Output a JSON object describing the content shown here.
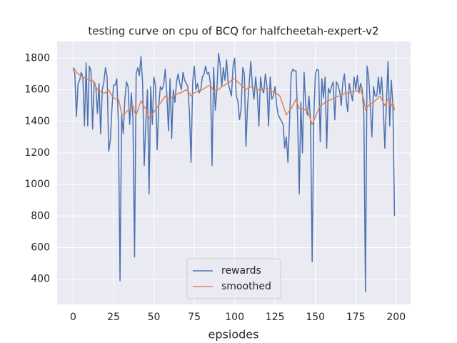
{
  "chart_data": {
    "type": "line",
    "title": "testing curve on cpu of BCQ for halfcheetah-expert-v2",
    "xlabel": "epsiodes",
    "x": [
      0,
      1,
      2,
      3,
      4,
      5,
      6,
      7,
      8,
      9,
      10,
      11,
      12,
      13,
      14,
      15,
      16,
      17,
      18,
      19,
      20,
      21,
      22,
      23,
      24,
      25,
      26,
      27,
      28,
      29,
      30,
      31,
      32,
      33,
      34,
      35,
      36,
      37,
      38,
      39,
      40,
      41,
      42,
      43,
      44,
      45,
      46,
      47,
      48,
      49,
      50,
      51,
      52,
      53,
      54,
      55,
      56,
      57,
      58,
      59,
      60,
      61,
      62,
      63,
      64,
      65,
      66,
      67,
      68,
      69,
      70,
      71,
      72,
      73,
      74,
      75,
      76,
      77,
      78,
      79,
      80,
      81,
      82,
      83,
      84,
      85,
      86,
      87,
      88,
      89,
      90,
      91,
      92,
      93,
      94,
      95,
      96,
      97,
      98,
      99,
      100,
      101,
      102,
      103,
      104,
      105,
      106,
      107,
      108,
      109,
      110,
      111,
      112,
      113,
      114,
      115,
      116,
      117,
      118,
      119,
      120,
      121,
      122,
      123,
      124,
      125,
      126,
      127,
      128,
      129,
      130,
      131,
      132,
      133,
      134,
      135,
      136,
      137,
      138,
      139,
      140,
      141,
      142,
      143,
      144,
      145,
      146,
      147,
      148,
      149,
      150,
      151,
      152,
      153,
      154,
      155,
      156,
      157,
      158,
      159,
      160,
      161,
      162,
      163,
      164,
      165,
      166,
      167,
      168,
      169,
      170,
      171,
      172,
      173,
      174,
      175,
      176,
      177,
      178,
      179,
      180,
      181,
      182,
      183,
      184,
      185,
      186,
      187,
      188,
      189,
      190,
      191,
      192,
      193,
      194,
      195,
      196,
      197,
      198,
      199
    ],
    "series": [
      {
        "name": "rewards",
        "color": "#4c72b0",
        "values": [
          1740,
          1700,
          1430,
          1640,
          1660,
          1710,
          1680,
          1370,
          1770,
          1370,
          1750,
          1720,
          1350,
          1650,
          1620,
          1450,
          1640,
          1320,
          1600,
          1650,
          1740,
          1680,
          1210,
          1280,
          1480,
          1630,
          1630,
          1670,
          1390,
          390,
          1440,
          1320,
          1540,
          1650,
          1620,
          1380,
          1580,
          1420,
          540,
          1700,
          1740,
          1690,
          1810,
          1640,
          1120,
          1400,
          1600,
          940,
          1620,
          1380,
          1680,
          1620,
          1220,
          1500,
          1620,
          1600,
          1630,
          1730,
          1570,
          1340,
          1670,
          1290,
          1600,
          1520,
          1650,
          1700,
          1640,
          1600,
          1710,
          1660,
          1640,
          1620,
          1450,
          1140,
          1650,
          1750,
          1600,
          1640,
          1580,
          1600,
          1680,
          1700,
          1750,
          1700,
          1710,
          1640,
          1120,
          1740,
          1470,
          1600,
          1830,
          1760,
          1620,
          1740,
          1660,
          1790,
          1640,
          1600,
          1560,
          1750,
          1800,
          1560,
          1530,
          1410,
          1480,
          1740,
          1700,
          1240,
          1500,
          1640,
          1780,
          1620,
          1540,
          1680,
          1580,
          1370,
          1680,
          1600,
          1580,
          1700,
          1620,
          1370,
          1680,
          1540,
          1560,
          1620,
          1500,
          1440,
          1420,
          1400,
          1380,
          1230,
          1300,
          1140,
          1400,
          1700,
          1730,
          1720,
          1720,
          1420,
          940,
          1520,
          1200,
          1710,
          1500,
          1440,
          1560,
          1400,
          510,
          1420,
          1700,
          1730,
          1720,
          1270,
          1670,
          1550,
          1680,
          1230,
          1610,
          1580,
          1620,
          1650,
          1410,
          1650,
          1630,
          1590,
          1500,
          1650,
          1700,
          1550,
          1460,
          1640,
          1580,
          1530,
          1680,
          1600,
          1690,
          1580,
          1640,
          1600,
          1450,
          320,
          1750,
          1680,
          1500,
          1300,
          1620,
          1560,
          1560,
          1680,
          1570,
          1680,
          1500,
          1230,
          1520,
          1780,
          1370,
          1660,
          1500,
          800
        ]
      },
      {
        "name": "smoothed",
        "color": "#dd8452",
        "values": [
          1740,
          1730,
          1710,
          1700,
          1695,
          1690,
          1680,
          1675,
          1670,
          1665,
          1660,
          1660,
          1660,
          1640,
          1620,
          1600,
          1595,
          1590,
          1580,
          1580,
          1580,
          1590,
          1600,
          1580,
          1560,
          1550,
          1545,
          1540,
          1540,
          1500,
          1450,
          1440,
          1450,
          1460,
          1470,
          1480,
          1490,
          1500,
          1460,
          1440,
          1470,
          1500,
          1530,
          1510,
          1490,
          1480,
          1450,
          1420,
          1430,
          1445,
          1460,
          1475,
          1490,
          1500,
          1515,
          1530,
          1545,
          1560,
          1550,
          1545,
          1540,
          1550,
          1560,
          1565,
          1570,
          1575,
          1580,
          1580,
          1590,
          1595,
          1600,
          1590,
          1575,
          1560,
          1570,
          1580,
          1585,
          1590,
          1595,
          1600,
          1600,
          1605,
          1615,
          1620,
          1625,
          1630,
          1610,
          1590,
          1595,
          1600,
          1600,
          1610,
          1620,
          1625,
          1630,
          1640,
          1645,
          1650,
          1660,
          1665,
          1670,
          1660,
          1650,
          1640,
          1630,
          1620,
          1610,
          1600,
          1610,
          1615,
          1620,
          1615,
          1610,
          1605,
          1600,
          1600,
          1602,
          1605,
          1608,
          1610,
          1610,
          1605,
          1600,
          1590,
          1585,
          1580,
          1575,
          1570,
          1560,
          1530,
          1500,
          1470,
          1440,
          1455,
          1470,
          1480,
          1500,
          1520,
          1540,
          1510,
          1480,
          1485,
          1480,
          1475,
          1470,
          1470,
          1440,
          1410,
          1380,
          1405,
          1430,
          1455,
          1480,
          1500,
          1505,
          1510,
          1520,
          1525,
          1530,
          1535,
          1540,
          1545,
          1550,
          1555,
          1558,
          1560,
          1565,
          1570,
          1575,
          1578,
          1580,
          1582,
          1585,
          1588,
          1590,
          1590,
          1595,
          1598,
          1600,
          1570,
          1540,
          1470,
          1485,
          1500,
          1510,
          1515,
          1520,
          1530,
          1540,
          1550,
          1560,
          1540,
          1520,
          1500,
          1520,
          1540,
          1520,
          1500,
          1520,
          1470
        ]
      }
    ],
    "xlim": [
      -9.95,
      208.95
    ],
    "xticks": [
      0,
      25,
      50,
      75,
      100,
      125,
      150,
      175,
      200
    ],
    "ylim": [
      240,
      1906
    ],
    "yticks": [
      400,
      600,
      800,
      1000,
      1200,
      1400,
      1600,
      1800
    ],
    "grid": true,
    "legend": "lower center"
  }
}
